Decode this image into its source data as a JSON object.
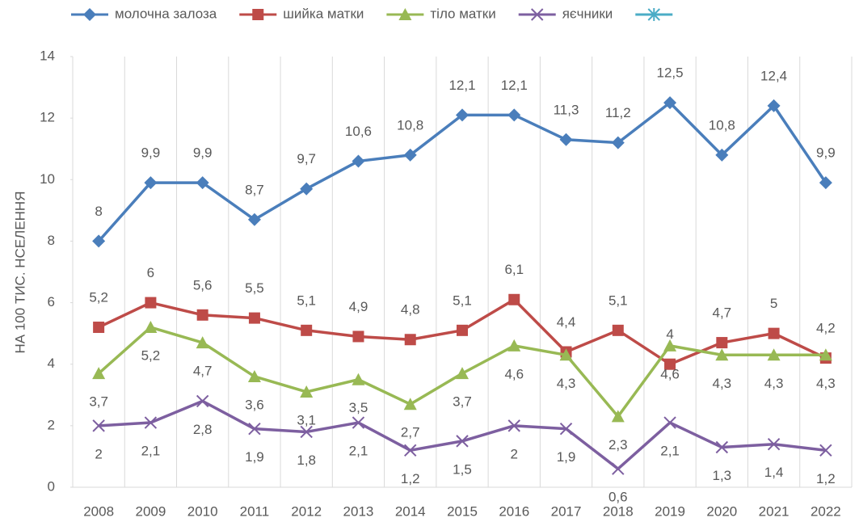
{
  "chart_data": {
    "type": "line",
    "y_label": "НА 100 ТИС. НСЕЛЕННЯ",
    "categories": [
      "2008",
      "2009",
      "2010",
      "2011",
      "2012",
      "2013",
      "2014",
      "2015",
      "2016",
      "2017",
      "2018",
      "2019",
      "2020",
      "2021",
      "2022"
    ],
    "ylim": [
      0,
      14
    ],
    "yticks": [
      0,
      2,
      4,
      6,
      8,
      10,
      12,
      14
    ],
    "vertical_grid": true,
    "legend": "top",
    "series": [
      {
        "name": "молочна залоза",
        "color": "#4a7ebb",
        "marker": "diamond",
        "label_position": "above",
        "values": [
          8,
          9.9,
          9.9,
          8.7,
          9.7,
          10.6,
          10.8,
          12.1,
          12.1,
          11.3,
          11.2,
          12.5,
          10.8,
          12.4,
          9.9
        ],
        "value_labels": [
          "8",
          "9,9",
          "9,9",
          "8,7",
          "9,7",
          "10,6",
          "10,8",
          "12,1",
          "12,1",
          "11,3",
          "11,2",
          "12,5",
          "10,8",
          "12,4",
          "9,9"
        ]
      },
      {
        "name": "шийка матки",
        "color": "#be4b48",
        "marker": "square",
        "label_position": "above",
        "values": [
          5.2,
          6,
          5.6,
          5.5,
          5.1,
          4.9,
          4.8,
          5.1,
          6.1,
          4.4,
          5.1,
          4,
          4.7,
          5,
          4.2
        ],
        "value_labels": [
          "5,2",
          "6",
          "5,6",
          "5,5",
          "5,1",
          "4,9",
          "4,8",
          "5,1",
          "6,1",
          "4,4",
          "5,1",
          "4",
          "4,7",
          "5",
          "4,2"
        ]
      },
      {
        "name": "тіло матки",
        "color": "#98b954",
        "marker": "triangle",
        "label_position": "below",
        "values": [
          3.7,
          5.2,
          4.7,
          3.6,
          3.1,
          3.5,
          2.7,
          3.7,
          4.6,
          4.3,
          2.3,
          4.6,
          4.3,
          4.3,
          4.3
        ],
        "value_labels": [
          "3,7",
          "5,2",
          "4,7",
          "3,6",
          "3,1",
          "3,5",
          "2,7",
          "3,7",
          "4,6",
          "4,3",
          "2,3",
          "4,6",
          "4,3",
          "4,3",
          "4,3"
        ]
      },
      {
        "name": "яєчники",
        "color": "#7d5fa0",
        "marker": "x",
        "label_position": "below",
        "values": [
          2,
          2.1,
          2.8,
          1.9,
          1.8,
          2.1,
          1.2,
          1.5,
          2,
          1.9,
          0.6,
          2.1,
          1.3,
          1.4,
          1.2
        ],
        "value_labels": [
          "2",
          "2,1",
          "2,8",
          "1,9",
          "1,8",
          "2,1",
          "1,2",
          "1,5",
          "2",
          "1,9",
          "0,6",
          "2,1",
          "1,3",
          "1,4",
          "1,2"
        ]
      },
      {
        "color": "#4bacc6",
        "marker": "asterisk",
        "values": [
          null,
          null,
          null,
          null,
          null,
          null,
          null,
          null,
          null,
          null,
          null,
          null,
          null,
          null,
          null
        ]
      }
    ]
  }
}
